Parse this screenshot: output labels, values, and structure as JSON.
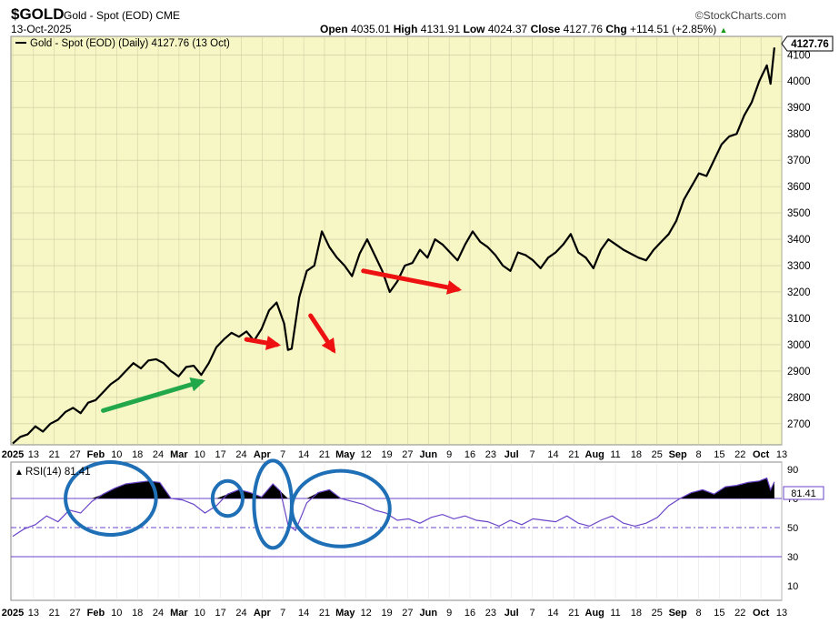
{
  "header": {
    "symbol": "$GOLD",
    "description": "Gold - Spot (EOD)",
    "exchange": "CME",
    "date": "13-Oct-2025",
    "brand": "©StockCharts.com",
    "open_label": "Open",
    "open": "4035.01",
    "high_label": "High",
    "high": "4131.91",
    "low_label": "Low",
    "low": "4024.37",
    "close_label": "Close",
    "close": "4127.76",
    "chg_label": "Chg",
    "chg": "+114.51 (+2.85%)",
    "chg_arrow": "▲"
  },
  "colors": {
    "plot_bg": "#f7f7c5",
    "grid": "#c8c8a0",
    "price_line": "#000000",
    "rsi_line": "#6a44c8",
    "overbought_fill": "#000000",
    "arrow_green": "#22a84a",
    "arrow_red": "#ee1111",
    "annotation_circle": "#1f6fb6"
  },
  "chart_data": [
    {
      "type": "line",
      "legend": "Gold - Spot (EOD) (Daily) 4127.76 (13 Oct)",
      "last_value_label": "4127.76",
      "y_ticks": [
        2700,
        2800,
        2900,
        3000,
        3100,
        3200,
        3300,
        3400,
        3500,
        3600,
        3700,
        3800,
        3900,
        4000,
        4100
      ],
      "ylim": [
        2620,
        4170
      ],
      "x_tick_labels": [
        {
          "t": "2025",
          "bold": true
        },
        {
          "t": "13"
        },
        {
          "t": "21"
        },
        {
          "t": "27"
        },
        {
          "t": "Feb",
          "bold": true
        },
        {
          "t": "10"
        },
        {
          "t": "18"
        },
        {
          "t": "24"
        },
        {
          "t": "Mar",
          "bold": true
        },
        {
          "t": "10"
        },
        {
          "t": "17"
        },
        {
          "t": "24"
        },
        {
          "t": "Apr",
          "bold": true
        },
        {
          "t": "7"
        },
        {
          "t": "14"
        },
        {
          "t": "21"
        },
        {
          "t": "May",
          "bold": true
        },
        {
          "t": "12"
        },
        {
          "t": "19"
        },
        {
          "t": "27"
        },
        {
          "t": "Jun",
          "bold": true
        },
        {
          "t": "9"
        },
        {
          "t": "16"
        },
        {
          "t": "23"
        },
        {
          "t": "Jul",
          "bold": true
        },
        {
          "t": "7"
        },
        {
          "t": "14"
        },
        {
          "t": "21"
        },
        {
          "t": "Aug",
          "bold": true
        },
        {
          "t": "11"
        },
        {
          "t": "18"
        },
        {
          "t": "25"
        },
        {
          "t": "Sep",
          "bold": true
        },
        {
          "t": "8"
        },
        {
          "t": "15"
        },
        {
          "t": "22"
        },
        {
          "t": "Oct",
          "bold": true
        },
        {
          "t": "13"
        }
      ],
      "x_range": [
        0,
        203
      ],
      "series": [
        {
          "name": "Gold - Spot (EOD)",
          "points": [
            [
              0,
              2625
            ],
            [
              2,
              2650
            ],
            [
              4,
              2660
            ],
            [
              6,
              2690
            ],
            [
              8,
              2670
            ],
            [
              10,
              2700
            ],
            [
              12,
              2715
            ],
            [
              14,
              2745
            ],
            [
              16,
              2760
            ],
            [
              18,
              2740
            ],
            [
              20,
              2780
            ],
            [
              22,
              2790
            ],
            [
              24,
              2820
            ],
            [
              26,
              2850
            ],
            [
              28,
              2870
            ],
            [
              30,
              2900
            ],
            [
              32,
              2930
            ],
            [
              34,
              2910
            ],
            [
              36,
              2940
            ],
            [
              38,
              2945
            ],
            [
              40,
              2930
            ],
            [
              42,
              2900
            ],
            [
              44,
              2880
            ],
            [
              46,
              2915
            ],
            [
              48,
              2920
            ],
            [
              50,
              2885
            ],
            [
              52,
              2930
            ],
            [
              54,
              2990
            ],
            [
              56,
              3020
            ],
            [
              58,
              3045
            ],
            [
              60,
              3030
            ],
            [
              62,
              3050
            ],
            [
              64,
              3015
            ],
            [
              66,
              3060
            ],
            [
              68,
              3130
            ],
            [
              70,
              3160
            ],
            [
              72,
              3080
            ],
            [
              73,
              2980
            ],
            [
              74,
              2985
            ],
            [
              76,
              3180
            ],
            [
              78,
              3280
            ],
            [
              80,
              3300
            ],
            [
              82,
              3430
            ],
            [
              84,
              3370
            ],
            [
              86,
              3330
            ],
            [
              88,
              3300
            ],
            [
              90,
              3260
            ],
            [
              92,
              3345
            ],
            [
              94,
              3400
            ],
            [
              96,
              3340
            ],
            [
              98,
              3280
            ],
            [
              100,
              3200
            ],
            [
              102,
              3240
            ],
            [
              104,
              3300
            ],
            [
              106,
              3310
            ],
            [
              108,
              3360
            ],
            [
              110,
              3330
            ],
            [
              112,
              3400
            ],
            [
              114,
              3380
            ],
            [
              116,
              3350
            ],
            [
              118,
              3320
            ],
            [
              120,
              3380
            ],
            [
              122,
              3430
            ],
            [
              124,
              3390
            ],
            [
              126,
              3370
            ],
            [
              128,
              3340
            ],
            [
              130,
              3300
            ],
            [
              132,
              3280
            ],
            [
              134,
              3350
            ],
            [
              136,
              3340
            ],
            [
              138,
              3320
            ],
            [
              140,
              3290
            ],
            [
              142,
              3330
            ],
            [
              144,
              3350
            ],
            [
              146,
              3380
            ],
            [
              148,
              3420
            ],
            [
              150,
              3350
            ],
            [
              152,
              3330
            ],
            [
              154,
              3290
            ],
            [
              156,
              3360
            ],
            [
              158,
              3400
            ],
            [
              160,
              3380
            ],
            [
              162,
              3360
            ],
            [
              164,
              3345
            ],
            [
              166,
              3330
            ],
            [
              168,
              3320
            ],
            [
              170,
              3360
            ],
            [
              172,
              3390
            ],
            [
              174,
              3420
            ],
            [
              176,
              3470
            ],
            [
              178,
              3550
            ],
            [
              180,
              3600
            ],
            [
              182,
              3650
            ],
            [
              184,
              3640
            ],
            [
              186,
              3700
            ],
            [
              188,
              3760
            ],
            [
              190,
              3790
            ],
            [
              192,
              3800
            ],
            [
              194,
              3870
            ],
            [
              196,
              3920
            ],
            [
              198,
              4000
            ],
            [
              200,
              4060
            ],
            [
              201,
              3990
            ],
            [
              202,
              4127.76
            ]
          ]
        }
      ],
      "annotations": [
        {
          "kind": "arrow",
          "color": "green",
          "from": [
            24,
            2750
          ],
          "to": [
            50,
            2860
          ]
        },
        {
          "kind": "arrow",
          "color": "red",
          "from": [
            62,
            3020
          ],
          "to": [
            70,
            3000
          ]
        },
        {
          "kind": "arrow",
          "color": "red",
          "from": [
            79,
            3110
          ],
          "to": [
            85,
            2980
          ]
        },
        {
          "kind": "arrow",
          "color": "red",
          "from": [
            93,
            3280
          ],
          "to": [
            118,
            3210
          ]
        }
      ]
    },
    {
      "type": "line",
      "legend": "RSI(14) 81.41",
      "last_value_label": "81.41",
      "y_ticks": [
        10,
        30,
        50,
        70,
        90
      ],
      "ylim": [
        0,
        95
      ],
      "reference_lines": [
        70,
        50,
        30
      ],
      "series": [
        {
          "name": "RSI(14)",
          "points": [
            [
              0,
              44
            ],
            [
              3,
              49
            ],
            [
              6,
              52
            ],
            [
              9,
              58
            ],
            [
              12,
              54
            ],
            [
              15,
              62
            ],
            [
              18,
              60
            ],
            [
              21,
              68
            ],
            [
              24,
              73
            ],
            [
              27,
              77
            ],
            [
              30,
              80
            ],
            [
              33,
              81
            ],
            [
              36,
              82
            ],
            [
              39,
              81
            ],
            [
              42,
              70
            ],
            [
              45,
              69
            ],
            [
              48,
              66
            ],
            [
              51,
              60
            ],
            [
              54,
              65
            ],
            [
              57,
              73
            ],
            [
              60,
              76
            ],
            [
              63,
              74
            ],
            [
              66,
              71
            ],
            [
              69,
              80
            ],
            [
              71,
              75
            ],
            [
              73,
              52
            ],
            [
              75,
              48
            ],
            [
              78,
              67
            ],
            [
              81,
              74
            ],
            [
              84,
              76
            ],
            [
              87,
              70
            ],
            [
              90,
              68
            ],
            [
              93,
              66
            ],
            [
              96,
              62
            ],
            [
              99,
              60
            ],
            [
              102,
              55
            ],
            [
              105,
              56
            ],
            [
              108,
              53
            ],
            [
              111,
              57
            ],
            [
              114,
              59
            ],
            [
              117,
              56
            ],
            [
              120,
              58
            ],
            [
              123,
              55
            ],
            [
              126,
              54
            ],
            [
              129,
              51
            ],
            [
              132,
              55
            ],
            [
              135,
              52
            ],
            [
              138,
              56
            ],
            [
              141,
              55
            ],
            [
              144,
              54
            ],
            [
              147,
              58
            ],
            [
              150,
              53
            ],
            [
              153,
              51
            ],
            [
              156,
              55
            ],
            [
              159,
              58
            ],
            [
              162,
              53
            ],
            [
              165,
              51
            ],
            [
              168,
              53
            ],
            [
              171,
              57
            ],
            [
              174,
              65
            ],
            [
              177,
              70
            ],
            [
              180,
              74
            ],
            [
              183,
              76
            ],
            [
              186,
              73
            ],
            [
              189,
              78
            ],
            [
              192,
              79
            ],
            [
              195,
              81
            ],
            [
              198,
              82
            ],
            [
              200,
              84
            ],
            [
              201,
              76
            ],
            [
              202,
              81.41
            ]
          ]
        }
      ],
      "annotations": [
        {
          "kind": "ellipse",
          "center": [
            26,
            70
          ],
          "rx": 12,
          "ry": 25
        },
        {
          "kind": "ellipse",
          "center": [
            57,
            70
          ],
          "rx": 4,
          "ry": 12
        },
        {
          "kind": "ellipse",
          "center": [
            69,
            66
          ],
          "rx": 5,
          "ry": 30
        },
        {
          "kind": "ellipse",
          "center": [
            87,
            63
          ],
          "rx": 13,
          "ry": 26
        }
      ]
    }
  ]
}
